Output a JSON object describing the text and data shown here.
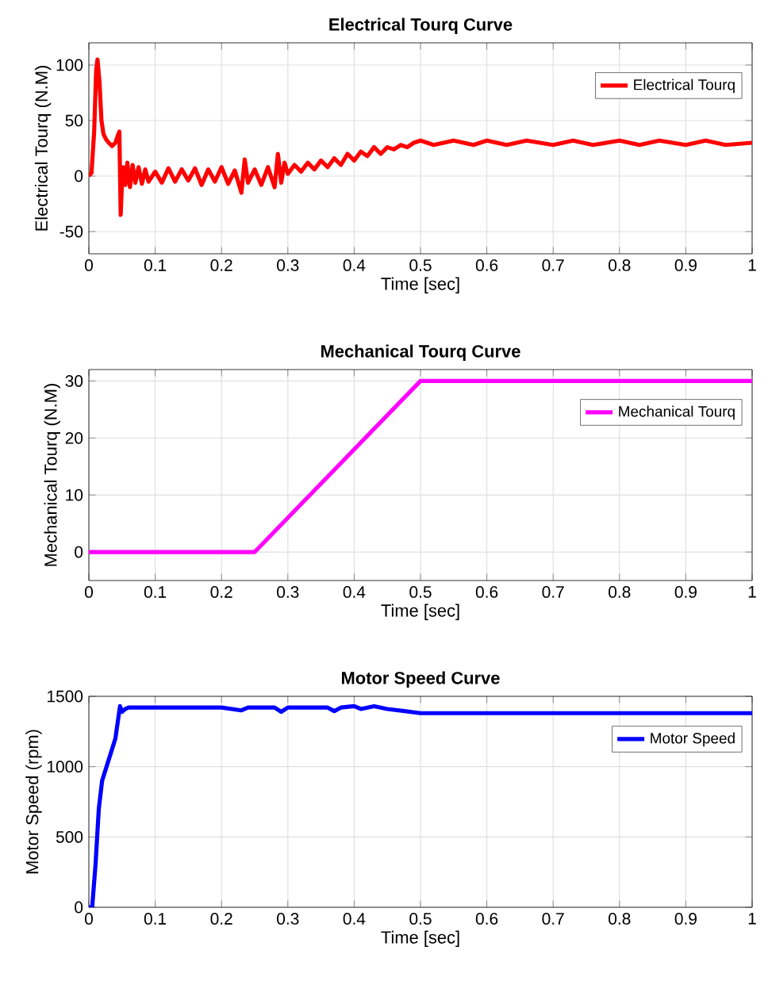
{
  "chart_data": [
    {
      "type": "line",
      "title": "Electrical Tourq Curve",
      "xlabel": "Time [sec]",
      "ylabel": "Electrical Tourq (N.M)",
      "xlim": [
        0,
        1
      ],
      "ylim": [
        -70,
        120
      ],
      "xticks": [
        0,
        0.1,
        0.2,
        0.3,
        0.4,
        0.5,
        0.6,
        0.7,
        0.8,
        0.9,
        1
      ],
      "yticks": [
        -50,
        0,
        50,
        100
      ],
      "grid": true,
      "legend": "top right",
      "x": [
        0,
        0.004,
        0.008,
        0.011,
        0.013,
        0.016,
        0.019,
        0.022,
        0.026,
        0.03,
        0.035,
        0.04,
        0.044,
        0.046,
        0.048,
        0.05,
        0.052,
        0.055,
        0.058,
        0.062,
        0.066,
        0.07,
        0.075,
        0.08,
        0.085,
        0.09,
        0.1,
        0.11,
        0.12,
        0.13,
        0.14,
        0.15,
        0.16,
        0.17,
        0.18,
        0.19,
        0.2,
        0.21,
        0.22,
        0.23,
        0.235,
        0.24,
        0.25,
        0.26,
        0.27,
        0.28,
        0.285,
        0.29,
        0.295,
        0.3,
        0.31,
        0.32,
        0.33,
        0.34,
        0.35,
        0.36,
        0.37,
        0.38,
        0.39,
        0.4,
        0.41,
        0.42,
        0.43,
        0.44,
        0.45,
        0.46,
        0.47,
        0.48,
        0.49,
        0.5,
        0.52,
        0.55,
        0.58,
        0.6,
        0.63,
        0.66,
        0.7,
        0.73,
        0.76,
        0.8,
        0.83,
        0.86,
        0.9,
        0.93,
        0.96,
        1
      ],
      "series": [
        {
          "name": "Electrical Tourq",
          "color": "#ff0000",
          "values": [
            0,
            3,
            40,
            95,
            105,
            85,
            50,
            38,
            33,
            30,
            27,
            30,
            37,
            40,
            -35,
            -5,
            8,
            -8,
            12,
            -10,
            10,
            -6,
            8,
            -7,
            6,
            -5,
            4,
            -6,
            7,
            -5,
            6,
            -4,
            7,
            -8,
            6,
            -5,
            8,
            -7,
            5,
            -15,
            15,
            -6,
            6,
            -8,
            8,
            -10,
            20,
            -6,
            12,
            2,
            10,
            4,
            12,
            6,
            14,
            8,
            16,
            10,
            20,
            14,
            22,
            18,
            26,
            20,
            26,
            24,
            28,
            26,
            30,
            32,
            28,
            32,
            28,
            32,
            28,
            32,
            28,
            32,
            28,
            32,
            28,
            32,
            28,
            32,
            28,
            30
          ]
        }
      ]
    },
    {
      "type": "line",
      "title": "Mechanical Tourq Curve",
      "xlabel": "Time [sec]",
      "ylabel": "Mechanical Tourq (N.M)",
      "xlim": [
        0,
        1
      ],
      "ylim": [
        -5,
        32
      ],
      "xticks": [
        0,
        0.1,
        0.2,
        0.3,
        0.4,
        0.5,
        0.6,
        0.7,
        0.8,
        0.9,
        1
      ],
      "yticks": [
        0,
        10,
        20,
        30
      ],
      "grid": true,
      "legend": "top right",
      "x": [
        0,
        0.25,
        0.5,
        1
      ],
      "series": [
        {
          "name": "Mechanical Tourq",
          "color": "#ff00ff",
          "values": [
            0,
            0,
            30,
            30
          ]
        }
      ]
    },
    {
      "type": "line",
      "title": "Motor Speed Curve",
      "xlabel": "Time [sec]",
      "ylabel": "Motor Speed (rpm)",
      "xlim": [
        0,
        1
      ],
      "ylim": [
        0,
        1500
      ],
      "xticks": [
        0,
        0.1,
        0.2,
        0.3,
        0.4,
        0.5,
        0.6,
        0.7,
        0.8,
        0.9,
        1
      ],
      "yticks": [
        0,
        500,
        1000,
        1500
      ],
      "grid": true,
      "legend": "top right",
      "x": [
        0,
        0.005,
        0.01,
        0.015,
        0.02,
        0.03,
        0.04,
        0.047,
        0.05,
        0.055,
        0.06,
        0.1,
        0.15,
        0.2,
        0.23,
        0.24,
        0.28,
        0.29,
        0.3,
        0.36,
        0.37,
        0.38,
        0.4,
        0.41,
        0.43,
        0.45,
        0.5,
        0.6,
        0.8,
        1
      ],
      "series": [
        {
          "name": "Motor Speed",
          "color": "#0000ff",
          "values": [
            0,
            0,
            300,
            700,
            900,
            1050,
            1200,
            1430,
            1390,
            1410,
            1420,
            1420,
            1420,
            1420,
            1400,
            1420,
            1420,
            1390,
            1420,
            1420,
            1395,
            1420,
            1430,
            1410,
            1430,
            1410,
            1380,
            1380,
            1380,
            1380
          ]
        }
      ]
    }
  ]
}
